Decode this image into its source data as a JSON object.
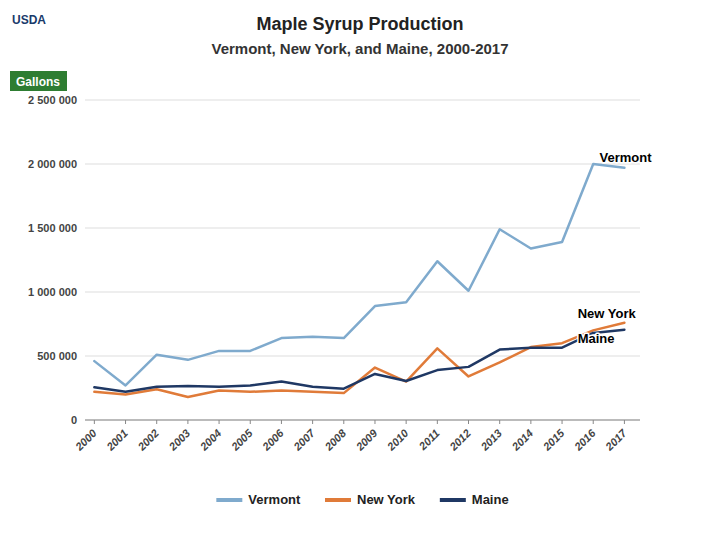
{
  "chart_data": {
    "type": "line",
    "title": "Maple Syrup Production",
    "subtitle": "Vermont, New York, and Maine, 2000-2017",
    "ylabel": "Gallons",
    "x": [
      2000,
      2001,
      2002,
      2003,
      2004,
      2005,
      2006,
      2007,
      2008,
      2009,
      2010,
      2011,
      2012,
      2013,
      2014,
      2015,
      2016,
      2017
    ],
    "series": [
      {
        "name": "Vermont",
        "color": "#7FAACD",
        "values": [
          460000,
          270000,
          510000,
          470000,
          540000,
          540000,
          640000,
          650000,
          640000,
          890000,
          920000,
          1240000,
          1010000,
          1490000,
          1340000,
          1390000,
          2000000,
          1970000
        ]
      },
      {
        "name": "New York",
        "color": "#E07B39",
        "values": [
          220000,
          200000,
          240000,
          180000,
          230000,
          220000,
          230000,
          220000,
          210000,
          410000,
          300000,
          560000,
          340000,
          450000,
          570000,
          600000,
          700000,
          760000
        ]
      },
      {
        "name": "Maine",
        "color": "#1F3864",
        "values": [
          255000,
          220000,
          260000,
          265000,
          260000,
          270000,
          300000,
          260000,
          245000,
          360000,
          305000,
          390000,
          415000,
          550000,
          565000,
          565000,
          680000,
          705000
        ]
      }
    ],
    "xlim": [
      1999.7,
      2017.5
    ],
    "xticks": [
      2000,
      2001,
      2002,
      2003,
      2004,
      2005,
      2006,
      2007,
      2008,
      2009,
      2010,
      2011,
      2012,
      2013,
      2014,
      2015,
      2016,
      2017
    ],
    "ylim": [
      0,
      2500000
    ],
    "yticks": [
      0,
      {
        "value": 500000,
        "label": "500 000"
      },
      {
        "value": 1000000,
        "label": "1 000 000"
      },
      {
        "value": 1500000,
        "label": "1 500 000"
      },
      {
        "value": 2000000,
        "label": "2 000 000"
      },
      {
        "value": 2500000,
        "label": "2 500 000"
      }
    ],
    "annotations": [
      {
        "text": "Vermont",
        "x": 2016.2,
        "y": 2050000
      },
      {
        "text": "New York",
        "x": 2015.5,
        "y": 830000
      },
      {
        "text": "Maine",
        "x": 2015.5,
        "y": 630000
      },
      {
        "text": "USDA"
      }
    ],
    "grid": true,
    "legend": "bottom"
  }
}
